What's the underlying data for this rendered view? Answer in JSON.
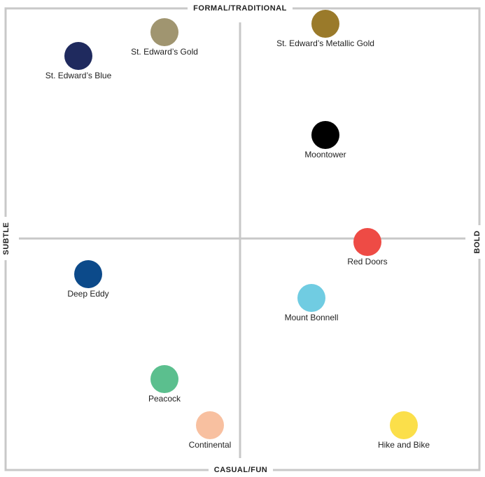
{
  "axes": {
    "top": "FORMAL/TRADITIONAL",
    "bottom": "CASUAL/FUN",
    "left": "SUBTLE",
    "right": "BOLD"
  },
  "nodes": [
    {
      "label": "St. Edward’s Gold",
      "color": "#a09570"
    },
    {
      "label": "St. Edward’s Metallic Gold",
      "color": "#9a7a2a"
    },
    {
      "label": "St. Edward’s Blue",
      "color": "#1f2a5e"
    },
    {
      "label": "Moontower",
      "color": "#000000"
    },
    {
      "label": "Red Doors",
      "color": "#ee4b45"
    },
    {
      "label": "Deep Eddy",
      "color": "#0c4a8a"
    },
    {
      "label": "Mount Bonnell",
      "color": "#70cce2"
    },
    {
      "label": "Peacock",
      "color": "#5bbf8e"
    },
    {
      "label": "Continental",
      "color": "#f8c0a0"
    },
    {
      "label": "Hike and Bike",
      "color": "#fbdf4a"
    }
  ]
}
